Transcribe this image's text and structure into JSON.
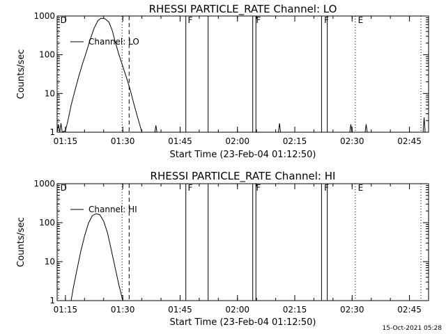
{
  "chart_data": [
    {
      "type": "line",
      "title": "RHESSI PARTICLE_RATE Channel: LO",
      "xlabel": "Start Time (23-Feb-04 01:12:50)",
      "ylabel": "Counts/sec",
      "y_scale": "log",
      "ylim": [
        1,
        1000
      ],
      "y_ticks": [
        "1",
        "10",
        "100",
        "1000"
      ],
      "x_ticks": [
        "01:15",
        "01:30",
        "01:45",
        "02:00",
        "02:15",
        "02:30",
        "02:45"
      ],
      "legend": "Channel: LO",
      "legend_position": "top-left",
      "series": [
        {
          "name": "Channel: LO",
          "points": [
            [
              "01:12:50",
              1.0
            ],
            [
              "01:13:10",
              1.6
            ],
            [
              "01:13:30",
              1.0
            ],
            [
              "01:13:50",
              1.7
            ],
            [
              "01:14:10",
              1.0
            ],
            [
              "01:15:00",
              1.1
            ],
            [
              "01:15:40",
              2.0
            ],
            [
              "01:16:30",
              5.0
            ],
            [
              "01:17:30",
              12
            ],
            [
              "01:18:30",
              28
            ],
            [
              "01:19:30",
              60
            ],
            [
              "01:20:30",
              120
            ],
            [
              "01:21:30",
              250
            ],
            [
              "01:22:30",
              480
            ],
            [
              "01:23:30",
              760
            ],
            [
              "01:24:20",
              880
            ],
            [
              "01:25:20",
              850
            ],
            [
              "01:26:20",
              700
            ],
            [
              "01:27:10",
              450
            ],
            [
              "01:28:00",
              220
            ],
            [
              "01:29:00",
              100
            ],
            [
              "01:30:00",
              50
            ],
            [
              "01:31:00",
              25
            ],
            [
              "01:32:00",
              12
            ],
            [
              "01:33:00",
              5
            ],
            [
              "01:34:00",
              2.2
            ],
            [
              "01:35:00",
              1.0
            ]
          ],
          "spikes": [
            [
              "01:38:40",
              1.5
            ],
            [
              "02:11:00",
              1.7
            ],
            [
              "02:29:40",
              1.6
            ],
            [
              "02:33:40",
              1.6
            ],
            [
              "02:48:50",
              2.4
            ]
          ]
        }
      ]
    },
    {
      "type": "line",
      "title": "RHESSI PARTICLE_RATE Channel: HI",
      "xlabel": "Start Time (23-Feb-04 01:12:50)",
      "ylabel": "Counts/sec",
      "y_scale": "log",
      "ylim": [
        1,
        1000
      ],
      "y_ticks": [
        "1",
        "10",
        "100",
        "1000"
      ],
      "x_ticks": [
        "01:15",
        "01:30",
        "01:45",
        "02:00",
        "02:15",
        "02:30",
        "02:45"
      ],
      "legend": "Channel: HI",
      "legend_position": "top-left",
      "series": [
        {
          "name": "Channel: HI",
          "points": [
            [
              "01:16:30",
              1.0
            ],
            [
              "01:17:00",
              2.0
            ],
            [
              "01:18:00",
              6
            ],
            [
              "01:19:00",
              18
            ],
            [
              "01:20:00",
              45
            ],
            [
              "01:21:00",
              95
            ],
            [
              "01:22:00",
              150
            ],
            [
              "01:23:00",
              170
            ],
            [
              "01:24:00",
              160
            ],
            [
              "01:25:00",
              110
            ],
            [
              "01:26:00",
              55
            ],
            [
              "01:27:00",
              20
            ],
            [
              "01:28:00",
              7
            ],
            [
              "01:29:00",
              2.5
            ],
            [
              "01:30:00",
              1.0
            ]
          ],
          "spikes": []
        }
      ]
    }
  ],
  "markers": {
    "dotted_lines": [
      "01:13:10",
      "01:29:50",
      "02:30:50",
      "02:48:00"
    ],
    "dashed_line": "01:31:40",
    "solid_lines": [
      "01:46:30",
      "01:52:20",
      "02:04:00",
      "02:04:50",
      "02:22:00",
      "02:23:30"
    ],
    "labels": [
      {
        "text": "D",
        "time": "01:13:30"
      },
      {
        "text": "F",
        "time": "01:46:50"
      },
      {
        "text": "F",
        "time": "02:04:40"
      },
      {
        "text": "F",
        "time": "02:22:30"
      },
      {
        "text": "E",
        "time": "02:31:20"
      }
    ]
  },
  "timestamp": "15-Oct-2021 05:28"
}
